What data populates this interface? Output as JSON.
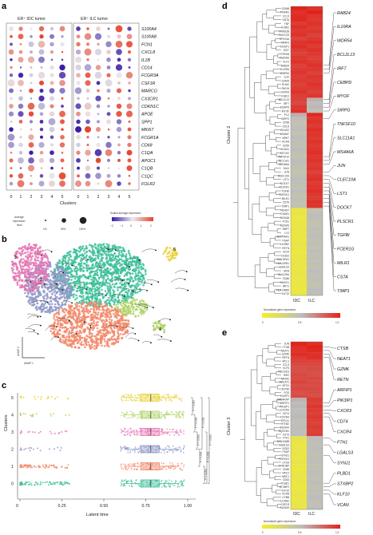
{
  "panel_a": {
    "label": "a",
    "group_titles": [
      "ER⁺ IDC tumor",
      "ER⁺ ILC tumor"
    ],
    "genes": [
      "S100A4",
      "S100A8",
      "FCN1",
      "CXCL8",
      "IL1B",
      "CD14",
      "FCGR3A",
      "CSF1R",
      "MARCO",
      "CX3CR1",
      "CDKN1C",
      "APOE",
      "SPP1",
      "MKI67",
      "FCGR1A",
      "CD68",
      "C1QA",
      "APOC1",
      "C1QB",
      "C1QC",
      "FOLR2"
    ],
    "cluster_ticks": [
      "0",
      "1",
      "2",
      "3",
      "4",
      "5",
      "0",
      "1",
      "2",
      "3",
      "4",
      "5"
    ],
    "xlabel": "Clusters",
    "size_legend_title": "Average expression level",
    "size_legend_labels": [
      "1%",
      "50%",
      "100%"
    ],
    "color_legend_title": "Scaled average expression",
    "color_legend_ticks": [
      "−2",
      "−1",
      "0",
      "1",
      "2"
    ],
    "colors": {
      "low": "#3a1aa8",
      "mid": "#e8e8e8",
      "high": "#e8402a"
    }
  },
  "panel_b": {
    "label": "b",
    "xlabel": "UMAP 1",
    "ylabel": "UMAP 2",
    "cluster_labels": [
      "0",
      "1",
      "2",
      "3",
      "4",
      "5"
    ],
    "cluster_colors": [
      "#3dbf9a",
      "#f2886a",
      "#8f98c8",
      "#e476b4",
      "#b0d46a",
      "#e8d23a"
    ]
  },
  "panel_c": {
    "label": "c",
    "ylabel": "Clusters",
    "xlabel": "Latent time",
    "clusters": [
      "5",
      "4",
      "3",
      "2",
      "1",
      "0"
    ],
    "xticks": [
      "0",
      "0.25",
      "0.50",
      "0.75",
      "1.00"
    ],
    "pvalues": [
      "P < 0.001",
      "P < 0.001",
      "P < 0.001",
      "P < 0.001",
      "P < 0.001",
      "P < 0.001",
      "P < 0.001",
      "P < 0.001"
    ]
  },
  "panel_d": {
    "label": "d",
    "cluster_title": "Cluster 2",
    "columns": [
      "IDC",
      "ILC"
    ],
    "legend_title": "Normalized gene expression",
    "legend_ticks": [
      "0",
      "0.5",
      "1.0"
    ],
    "highlighted_genes": [
      "RAB24",
      "IL10RA",
      "WDR54",
      "BCL2L13",
      "IRF7",
      "CEBPD",
      "MYOF",
      "SIRPG",
      "TNFSF10",
      "SLC11A1",
      "MS4A6A",
      "JUN",
      "CLEC10A",
      "LST1",
      "DOCK7",
      "PLSCR1",
      "TGFBI",
      "FCER1G",
      "MILR1",
      "CSTA",
      "TIMP1"
    ],
    "row_labels": [
      "GZMB",
      "PRAM1",
      "CCL5",
      "GNTA",
      "TNF",
      "KLRB1",
      "FRRS2B",
      "CLEC2D",
      "VPS13A",
      "MIMK3",
      "DUSP1",
      "ZGIT",
      "TSPAN",
      "TSEN54",
      "KLF2",
      "RAB24",
      "IL10RA",
      "WDR54",
      "IL32",
      "GZMH",
      "ELMO",
      "RHOH",
      "GATA3",
      "IGBC2",
      "BCL2L13",
      "IRF7",
      "CEBPD",
      "MYOF",
      "PLC",
      "SIRPG",
      "CD58",
      "CD1D",
      "BCAS2",
      "AGMAT",
      "NRKT",
      "ACAN",
      "CD59",
      "ACAA1",
      "MTCH2",
      "TNFSF10",
      "SLC11A1",
      "MS4A6A",
      "SA11",
      "JUN",
      "CLEC10A",
      "LST1",
      "DOCK7",
      "PLSCR1",
      "TGFBI",
      "FCER1G",
      "MILR1",
      "CSTA",
      "TIMP1",
      "MS4A7",
      "CSAR1",
      "S100A8",
      "FCN1",
      "S100A9",
      "RBP7",
      "LYZ",
      "SERPINA1",
      "PSAP",
      "LILRB2",
      "RETN",
      "CD14",
      "CD302",
      "HLA-DPA1",
      "HLA-DPB1",
      "LGALS3",
      "GRN",
      "HLA-DRA",
      "CD86",
      "HMOX1",
      "NRT1",
      "HLA-DRB5",
      "KLF10"
    ],
    "idc_values": [
      1.0,
      0.95,
      0.97,
      0.98,
      0.92,
      0.96,
      0.93,
      0.95,
      0.9,
      0.94,
      0.96,
      0.92,
      0.9,
      0.93,
      0.95,
      0.9,
      0.92,
      0.94,
      0.91,
      0.93,
      0.9,
      0.92,
      0.95,
      0.91,
      0.9,
      0.88,
      0.93,
      0.95,
      0.55,
      0.5,
      0.45,
      0.48,
      0.5,
      0.45,
      0.5,
      0.48,
      0.46,
      0.5,
      0.47,
      0.45,
      0.5,
      0.48,
      0.46,
      0.45,
      0.47,
      0.5,
      0.48,
      0.46,
      0.5,
      0.45,
      0.48,
      0.47,
      0.46,
      0.1,
      0.12,
      0.08,
      0.1,
      0.1,
      0.12,
      0.1,
      0.1,
      0.1,
      0.12,
      0.1,
      0.08,
      0.1,
      0.1,
      0.12,
      0.1,
      0.1,
      0.12,
      0.1,
      0.1,
      0.1,
      0.08,
      0.1
    ],
    "ilc_values": [
      0.95,
      1.0,
      0.94,
      0.93,
      0.95,
      0.92,
      0.94,
      0.9,
      0.93,
      0.96,
      0.92,
      0.95,
      0.93,
      0.9,
      0.92,
      0.95,
      0.93,
      0.9,
      0.94,
      0.92,
      0.95,
      0.93,
      0.9,
      0.94,
      0.55,
      0.5,
      0.52,
      0.48,
      0.98,
      0.93,
      0.95,
      0.92,
      0.96,
      0.94,
      0.93,
      0.95,
      0.92,
      0.94,
      0.96,
      0.93,
      0.95,
      0.92,
      0.94,
      0.9,
      0.93,
      0.95,
      0.92,
      0.94,
      0.96,
      0.93,
      0.92,
      0.95,
      0.94,
      0.45,
      0.48,
      0.5,
      0.46,
      0.45,
      0.48,
      0.47,
      0.5,
      0.46,
      0.48,
      0.45,
      0.5,
      0.47,
      0.46,
      0.48,
      0.45,
      0.5,
      0.47,
      0.48,
      0.46,
      0.45,
      0.5,
      0.48
    ]
  },
  "panel_e": {
    "label": "e",
    "cluster_title": "Cluster 3",
    "columns": [
      "IDC",
      "ILC"
    ],
    "legend_title": "Normalized gene expression",
    "legend_ticks": [
      "0",
      "0.5",
      "1.0"
    ],
    "highlighted_genes": [
      "CTSB",
      "NEAT1",
      "GZMK",
      "RETN",
      "ARFIP1",
      "PIK3IP1",
      "CXCR3",
      "CD74",
      "CXCR4",
      "FTH1",
      "LGALS3",
      "SYNJ1",
      "PLBD1",
      "STXBP2",
      "KLF10",
      "VCAN"
    ],
    "row_labels": [
      "JUN",
      "CTSB",
      "NEAT1",
      "GZMK",
      "RETN",
      "MCL1",
      "CCL3",
      "KLF6",
      "TSC22D3",
      "IER2",
      "NR4A2",
      "MALAT1",
      "BTG1",
      "ZFP36",
      "FOS",
      "DUSP1",
      "GABARAP",
      "ARFIP1",
      "PIK3IP1",
      "CXCR3",
      "CD74",
      "CXCR4",
      "RPL41",
      "IFITM2",
      "S100A4",
      "SQSTM1",
      "CST3",
      "FTH1",
      "GOLGA8B",
      "LGALS3",
      "SOD2",
      "PSAP",
      "SYNJ1",
      "FCER1G",
      "CTSD",
      "TYROBP",
      "CD68",
      "NPC2",
      "MRC1",
      "CD63",
      "PLBD1",
      "STXBP2",
      "KLF10",
      "VCAN",
      "CYBB",
      "LILRB2",
      "CSF1R",
      "S100A9"
    ],
    "idc_values": [
      1.0,
      0.96,
      0.95,
      0.97,
      0.92,
      0.9,
      0.88,
      0.86,
      0.85,
      0.88,
      0.87,
      0.9,
      0.86,
      0.88,
      0.85,
      0.87,
      0.55,
      0.5,
      0.52,
      0.48,
      0.5,
      0.52,
      0.5,
      0.47,
      0.5,
      0.48,
      0.5,
      0.15,
      0.12,
      0.1,
      0.1,
      0.12,
      0.1,
      0.1,
      0.12,
      0.1,
      0.08,
      0.1,
      0.12,
      0.1,
      0.1,
      0.08,
      0.1,
      0.12,
      0.1,
      0.1,
      0.12,
      0.1
    ],
    "ilc_values": [
      0.95,
      1.0,
      0.98,
      0.95,
      0.96,
      0.9,
      0.88,
      0.87,
      0.86,
      0.85,
      0.88,
      0.87,
      0.86,
      0.88,
      0.87,
      0.86,
      0.92,
      0.9,
      0.94,
      0.92,
      0.9,
      0.93,
      0.91,
      0.9,
      0.92,
      0.9,
      0.91,
      0.5,
      0.48,
      0.47,
      0.5,
      0.48,
      0.46,
      0.5,
      0.48,
      0.47,
      0.46,
      0.5,
      0.48,
      0.47,
      0.5,
      0.46,
      0.48,
      0.47,
      0.5,
      0.48,
      0.46,
      0.5
    ]
  }
}
